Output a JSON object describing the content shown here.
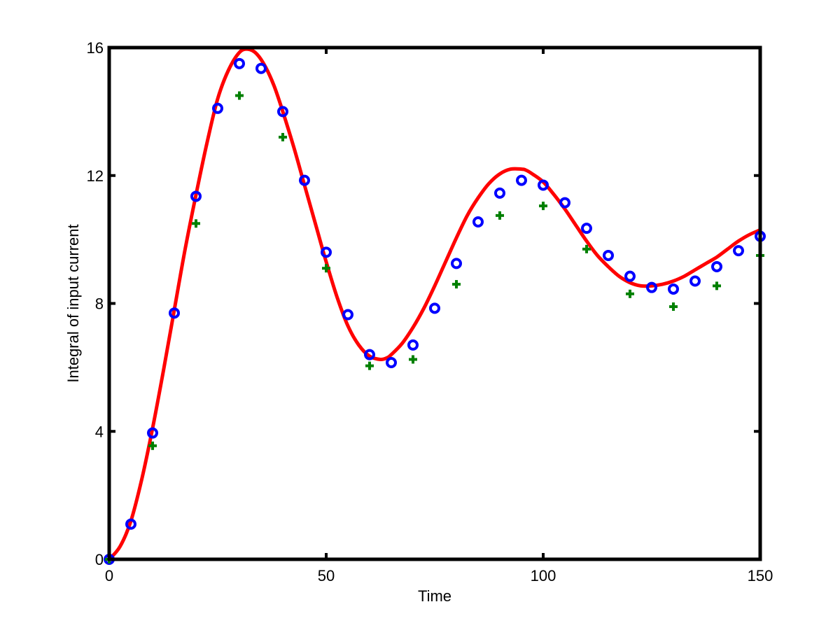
{
  "chart_data": {
    "type": "line",
    "title": "",
    "xlabel": "Time",
    "ylabel": "Integral of input current",
    "xlim": [
      0,
      150
    ],
    "ylim": [
      0,
      16
    ],
    "xticks": [
      0,
      50,
      100,
      150
    ],
    "yticks": [
      0,
      4,
      8,
      12,
      16
    ],
    "grid": false,
    "legend": "none",
    "series": [
      {
        "style": "line",
        "color": "#ff0000",
        "x": [
          0,
          2.5,
          5,
          7.5,
          10,
          12.5,
          15,
          17.5,
          20,
          22.5,
          25,
          27.5,
          30,
          32,
          34,
          36,
          38,
          40,
          42.5,
          45,
          47.5,
          50,
          52.5,
          55,
          57.5,
          60,
          62.5,
          64,
          65,
          67.5,
          70,
          72.5,
          75,
          77.5,
          80,
          82.5,
          85,
          87.5,
          90,
          92.5,
          95,
          96,
          97.5,
          100,
          102.5,
          105,
          107.5,
          110,
          112.5,
          115,
          117.5,
          120,
          122.5,
          125,
          127.5,
          130,
          132.5,
          135,
          137.5,
          140,
          142.5,
          145,
          147.5,
          150
        ],
        "y": [
          0,
          0.4,
          1.2,
          2.5,
          4.1,
          5.9,
          7.8,
          9.7,
          11.4,
          13.0,
          14.4,
          15.3,
          15.85,
          15.95,
          15.8,
          15.4,
          14.8,
          14.0,
          12.9,
          11.7,
          10.5,
          9.3,
          8.2,
          7.3,
          6.7,
          6.35,
          6.25,
          6.3,
          6.4,
          6.75,
          7.25,
          7.85,
          8.55,
          9.3,
          10.05,
          10.75,
          11.3,
          11.75,
          12.05,
          12.2,
          12.2,
          12.17,
          12.05,
          11.8,
          11.4,
          10.95,
          10.45,
          9.95,
          9.5,
          9.15,
          8.85,
          8.65,
          8.55,
          8.55,
          8.6,
          8.7,
          8.85,
          9.05,
          9.25,
          9.45,
          9.7,
          9.95,
          10.15,
          10.3
        ]
      },
      {
        "style": "circle",
        "color": "#0000ff",
        "x": [
          0,
          5,
          10,
          15,
          20,
          25,
          30,
          35,
          40,
          45,
          50,
          55,
          60,
          65,
          70,
          75,
          80,
          85,
          90,
          95,
          100,
          105,
          110,
          115,
          120,
          125,
          130,
          135,
          140,
          145,
          150
        ],
        "y": [
          0,
          1.1,
          3.95,
          7.7,
          11.35,
          14.1,
          15.5,
          15.35,
          14.0,
          11.85,
          9.6,
          7.65,
          6.4,
          6.15,
          6.7,
          7.85,
          9.25,
          10.55,
          11.45,
          11.85,
          11.7,
          11.15,
          10.35,
          9.5,
          8.85,
          8.5,
          8.45,
          8.7,
          9.15,
          9.65,
          10.1
        ]
      },
      {
        "style": "plus",
        "color": "#008000",
        "x": [
          0,
          10,
          20,
          30,
          40,
          50,
          60,
          70,
          80,
          90,
          100,
          110,
          120,
          130,
          140,
          150
        ],
        "y": [
          0,
          3.55,
          10.5,
          14.5,
          13.2,
          9.1,
          6.05,
          6.25,
          8.6,
          10.75,
          11.05,
          9.7,
          8.3,
          7.9,
          8.55,
          9.5
        ]
      }
    ]
  }
}
